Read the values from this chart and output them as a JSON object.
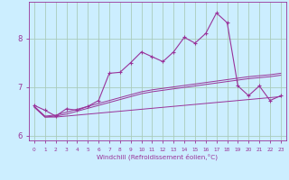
{
  "xlabel": "Windchill (Refroidissement éolien,°C)",
  "background_color": "#cceeff",
  "grid_color": "#aaccbb",
  "line_color": "#993399",
  "x_values": [
    0,
    1,
    2,
    3,
    4,
    5,
    6,
    7,
    8,
    9,
    10,
    11,
    12,
    13,
    14,
    15,
    16,
    17,
    18,
    19,
    20,
    21,
    22,
    23
  ],
  "main_line": [
    6.62,
    6.52,
    6.4,
    6.55,
    6.52,
    6.6,
    6.72,
    7.28,
    7.3,
    7.5,
    7.72,
    7.62,
    7.52,
    7.72,
    8.02,
    7.9,
    8.1,
    8.52,
    8.32,
    7.02,
    6.82,
    7.02,
    6.72,
    6.82
  ],
  "linear1": [
    6.6,
    6.38,
    6.38,
    6.4,
    6.42,
    6.44,
    6.46,
    6.48,
    6.5,
    6.52,
    6.54,
    6.56,
    6.58,
    6.6,
    6.62,
    6.64,
    6.66,
    6.68,
    6.7,
    6.72,
    6.74,
    6.76,
    6.78,
    6.8
  ],
  "linear2": [
    6.6,
    6.4,
    6.42,
    6.48,
    6.54,
    6.6,
    6.66,
    6.72,
    6.78,
    6.84,
    6.9,
    6.94,
    6.97,
    7.0,
    7.03,
    7.06,
    7.09,
    7.12,
    7.15,
    7.18,
    7.21,
    7.23,
    7.25,
    7.28
  ],
  "linear3": [
    6.58,
    6.38,
    6.4,
    6.44,
    6.5,
    6.56,
    6.62,
    6.68,
    6.74,
    6.8,
    6.86,
    6.9,
    6.93,
    6.96,
    6.99,
    7.02,
    7.05,
    7.08,
    7.11,
    7.14,
    7.17,
    7.19,
    7.21,
    7.24
  ],
  "ylim": [
    5.9,
    8.75
  ],
  "yticks": [
    6,
    7,
    8
  ],
  "xlim": [
    -0.5,
    23.5
  ]
}
